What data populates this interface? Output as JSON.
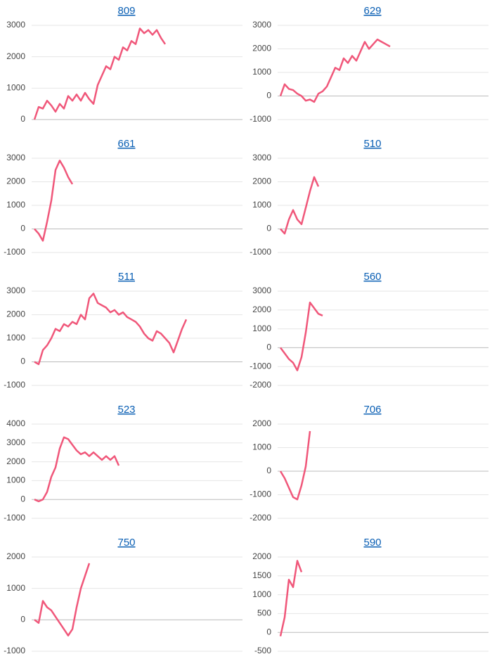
{
  "chart_data": [
    {
      "type": "line",
      "title": "809",
      "ylim": [
        0,
        3000
      ],
      "yticks": [
        0,
        1000,
        2000,
        3000
      ],
      "grid": true,
      "color": "#f0577a",
      "values": [
        0,
        400,
        350,
        600,
        450,
        250,
        500,
        350,
        750,
        600,
        800,
        600,
        850,
        650,
        500,
        1100,
        1400,
        1700,
        1600,
        2000,
        1900,
        2300,
        2200,
        2500,
        2400,
        2900,
        2750,
        2850,
        2700,
        2850,
        2600,
        2400
      ]
    },
    {
      "type": "line",
      "title": "629",
      "ylim": [
        -1000,
        3000
      ],
      "yticks": [
        -1000,
        0,
        1000,
        2000,
        3000
      ],
      "grid": true,
      "color": "#f0577a",
      "values": [
        0,
        500,
        300,
        250,
        100,
        0,
        -200,
        -150,
        -250,
        100,
        200,
        400,
        800,
        1200,
        1100,
        1600,
        1400,
        1700,
        1500,
        1900,
        2300,
        2000,
        2200,
        2400,
        2300,
        2200,
        2100
      ]
    },
    {
      "type": "line",
      "title": "661",
      "ylim": [
        -1000,
        3000
      ],
      "yticks": [
        -1000,
        0,
        1000,
        2000,
        3000
      ],
      "grid": true,
      "color": "#f0577a",
      "values": [
        0,
        -200,
        -500,
        300,
        1200,
        2500,
        2900,
        2600,
        2200,
        1900
      ]
    },
    {
      "type": "line",
      "title": "510",
      "ylim": [
        -1000,
        3000
      ],
      "yticks": [
        -1000,
        0,
        1000,
        2000,
        3000
      ],
      "grid": true,
      "color": "#f0577a",
      "values": [
        0,
        -200,
        400,
        800,
        400,
        200,
        900,
        1600,
        2200,
        1800
      ]
    },
    {
      "type": "line",
      "title": "511",
      "ylim": [
        -1000,
        3000
      ],
      "yticks": [
        -1000,
        0,
        1000,
        2000,
        3000
      ],
      "grid": true,
      "color": "#f0577a",
      "values": [
        0,
        -100,
        500,
        700,
        1000,
        1400,
        1300,
        1600,
        1500,
        1700,
        1600,
        2000,
        1800,
        2700,
        2900,
        2500,
        2400,
        2300,
        2100,
        2200,
        2000,
        2100,
        1900,
        1800,
        1700,
        1500,
        1200,
        1000,
        900,
        1300,
        1200,
        1000,
        800,
        400,
        900,
        1400,
        1800
      ]
    },
    {
      "type": "line",
      "title": "560",
      "ylim": [
        -2000,
        3000
      ],
      "yticks": [
        -2000,
        -1000,
        0,
        1000,
        2000,
        3000
      ],
      "grid": true,
      "color": "#f0577a",
      "values": [
        0,
        -300,
        -600,
        -800,
        -1200,
        -500,
        800,
        2400,
        2100,
        1800,
        1700
      ]
    },
    {
      "type": "line",
      "title": "523",
      "ylim": [
        -1000,
        4000
      ],
      "yticks": [
        -1000,
        0,
        1000,
        2000,
        3000,
        4000
      ],
      "grid": true,
      "color": "#f0577a",
      "values": [
        0,
        -100,
        0,
        400,
        1200,
        1700,
        2700,
        3300,
        3200,
        2900,
        2600,
        2400,
        2500,
        2300,
        2500,
        2300,
        2100,
        2300,
        2100,
        2300,
        1800
      ]
    },
    {
      "type": "line",
      "title": "706",
      "ylim": [
        -2000,
        2000
      ],
      "yticks": [
        -2000,
        -1000,
        0,
        1000,
        2000
      ],
      "grid": true,
      "color": "#f0577a",
      "values": [
        0,
        -300,
        -700,
        -1100,
        -1200,
        -600,
        200,
        1700
      ]
    },
    {
      "type": "line",
      "title": "750",
      "ylim": [
        -1000,
        2000
      ],
      "yticks": [
        -1000,
        0,
        1000,
        2000
      ],
      "grid": true,
      "color": "#f0577a",
      "values": [
        0,
        -100,
        600,
        400,
        300,
        100,
        -100,
        -300,
        -500,
        -300,
        400,
        1000,
        1400,
        1800
      ]
    },
    {
      "type": "line",
      "title": "590",
      "ylim": [
        -500,
        2000
      ],
      "yticks": [
        -500,
        0,
        500,
        1000,
        1500,
        2000
      ],
      "grid": true,
      "color": "#f0577a",
      "values": [
        -100,
        400,
        1400,
        1200,
        1900,
        1600
      ]
    }
  ]
}
